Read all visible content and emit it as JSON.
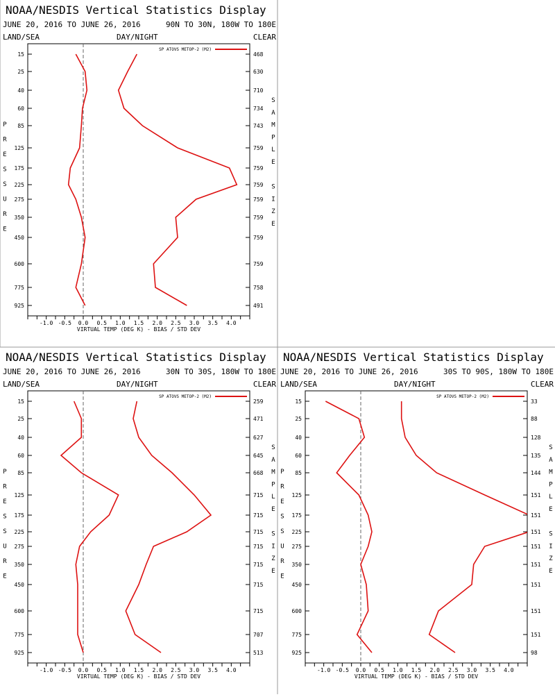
{
  "colors": {
    "series": "#dd1111",
    "zero_line": "#666666",
    "divider": "#999999"
  },
  "header_labels": {
    "land_sea": "LAND/SEA",
    "day_night": "DAY/NIGHT",
    "clear": "CLEAR",
    "pressure_vertical": "PRESSURE",
    "sample_size_vertical": "SAMPLE SIZE"
  },
  "chart_data": [
    {
      "type": "line",
      "title": "NOAA/NESDIS Vertical Statistics Display",
      "date_range": "JUNE 20, 2016 TO JUNE 26, 2016",
      "region": "90N TO 30N, 180W TO 180E",
      "legend": "SP ATOVS METOP-2 (M2)",
      "legend_placement": "top-right",
      "xlabel": "VIRTUAL TEMP (DEG K) - BIAS / STD DEV",
      "xlim": [
        -1.5,
        4.5
      ],
      "xticks": [
        "-1.0",
        "-0.5",
        "0.0",
        "0.5",
        "1.0",
        "1.5",
        "2.0",
        "2.5",
        "3.0",
        "3.5",
        "4.0"
      ],
      "pressure_levels": [
        "15",
        "25",
        "40",
        "60",
        "85",
        "125",
        "175",
        "225",
        "275",
        "350",
        "450",
        "600",
        "775",
        "925"
      ],
      "sample_size": [
        "468",
        "630",
        "710",
        "734",
        "743",
        "759",
        "759",
        "759",
        "759",
        "759",
        "759",
        "759",
        "758",
        "491"
      ],
      "series": [
        {
          "name": "BIAS",
          "values": [
            -0.2,
            0.05,
            0.1,
            -0.02,
            -0.05,
            -0.1,
            -0.35,
            -0.4,
            -0.2,
            -0.05,
            0.05,
            -0.05,
            -0.2,
            0.05
          ]
        },
        {
          "name": "STD DEV",
          "values": [
            1.45,
            1.2,
            0.95,
            1.1,
            1.6,
            2.55,
            3.95,
            4.15,
            3.05,
            2.5,
            2.55,
            1.9,
            1.95,
            2.8
          ]
        }
      ]
    },
    {
      "type": "line",
      "title": "NOAA/NESDIS Vertical Statistics Display",
      "date_range": "JUNE 20, 2016 TO JUNE 26, 2016",
      "region": "30N TO 30S, 180W TO 180E",
      "legend": "SP ATOVS METOP-2 (M2)",
      "legend_placement": "top-right",
      "xlabel": "VIRTUAL TEMP (DEG K) - BIAS / STD DEV",
      "xlim": [
        -1.5,
        4.5
      ],
      "xticks": [
        "-1.0",
        "-0.5",
        "0.0",
        "0.5",
        "1.0",
        "1.5",
        "2.0",
        "2.5",
        "3.0",
        "3.5",
        "4.0"
      ],
      "pressure_levels": [
        "15",
        "25",
        "40",
        "60",
        "85",
        "125",
        "175",
        "225",
        "275",
        "350",
        "450",
        "600",
        "775",
        "925"
      ],
      "sample_size": [
        "259",
        "471",
        "627",
        "645",
        "668",
        "715",
        "715",
        "715",
        "715",
        "715",
        "715",
        "715",
        "707",
        "513"
      ],
      "series": [
        {
          "name": "BIAS",
          "values": [
            -0.25,
            -0.05,
            -0.05,
            -0.6,
            -0.05,
            0.95,
            0.7,
            0.2,
            -0.1,
            -0.2,
            -0.15,
            -0.15,
            -0.15,
            0.0
          ]
        },
        {
          "name": "STD DEV",
          "values": [
            1.45,
            1.35,
            1.5,
            1.85,
            2.4,
            3.0,
            3.45,
            2.8,
            1.9,
            1.7,
            1.5,
            1.15,
            1.4,
            2.1
          ]
        }
      ]
    },
    {
      "type": "line",
      "title": "NOAA/NESDIS Vertical Statistics Display",
      "date_range": "JUNE 20, 2016 TO JUNE 26, 2016",
      "region": "30S TO 90S, 180W TO 180E",
      "legend": "SP ATOVS METOP-2 (M2)",
      "legend_placement": "top-right",
      "xlabel": "VIRTUAL TEMP (DEG K) - BIAS / STD DEV",
      "xlim": [
        -1.5,
        4.5
      ],
      "xticks": [
        "-1.0",
        "-0.5",
        "0.0",
        "0.5",
        "1.0",
        "1.5",
        "2.0",
        "2.5",
        "3.0",
        "3.5",
        "4.0"
      ],
      "pressure_levels": [
        "15",
        "25",
        "40",
        "60",
        "85",
        "125",
        "175",
        "225",
        "275",
        "350",
        "450",
        "600",
        "775",
        "925"
      ],
      "sample_size": [
        "33",
        "88",
        "128",
        "135",
        "144",
        "151",
        "151",
        "151",
        "151",
        "151",
        "151",
        "151",
        "151",
        "98"
      ],
      "series": [
        {
          "name": "BIAS",
          "values": [
            -0.95,
            -0.05,
            0.1,
            -0.3,
            -0.65,
            -0.05,
            0.2,
            0.3,
            0.2,
            0.0,
            0.15,
            0.2,
            -0.1,
            0.3
          ]
        },
        {
          "name": "STD DEV",
          "values": [
            1.1,
            1.1,
            1.2,
            1.5,
            2.05,
            3.35,
            4.55,
            4.55,
            3.35,
            3.05,
            3.0,
            2.1,
            1.85,
            2.55
          ]
        }
      ]
    }
  ]
}
